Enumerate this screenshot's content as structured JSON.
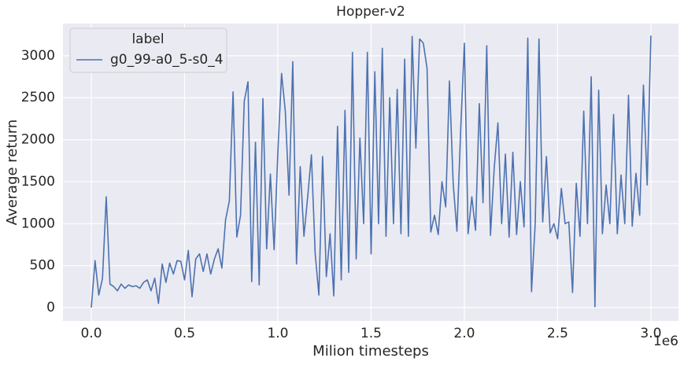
{
  "chart_data": {
    "type": "line",
    "title": "Hopper-v2",
    "x_label": "Milion timesteps",
    "y_label": "Average return",
    "x_offset_label": "1e6",
    "legend_title": "label",
    "legend_position": "upper left",
    "grid": true,
    "xlim": [
      -0.152,
      3.148
    ],
    "ylim": [
      -159,
      3383
    ],
    "xticks": [
      {
        "value": 0,
        "label": "0.0"
      },
      0.5,
      {
        "value": 1,
        "label": "1.0"
      },
      1.5,
      {
        "value": 2,
        "label": "2.0"
      },
      2.5,
      {
        "value": 3,
        "label": "3.0"
      }
    ],
    "yticks": [
      0,
      500,
      1000,
      1500,
      2000,
      2500,
      3000
    ],
    "x": [
      0,
      0.02,
      0.04,
      0.06,
      0.08,
      0.1,
      0.12,
      0.14,
      0.16,
      0.18,
      0.2,
      0.22,
      0.24,
      0.26,
      0.28,
      0.3,
      0.32,
      0.34,
      0.36,
      0.38,
      0.4,
      0.42,
      0.44,
      0.46,
      0.48,
      0.5,
      0.52,
      0.54,
      0.56,
      0.58,
      0.6,
      0.62,
      0.64,
      0.66,
      0.68,
      0.7,
      0.72,
      0.74,
      0.76,
      0.78,
      0.8,
      0.82,
      0.84,
      0.86,
      0.88,
      0.9,
      0.92,
      0.94,
      0.96,
      0.98,
      1,
      1.02,
      1.04,
      1.06,
      1.08,
      1.1,
      1.12,
      1.14,
      1.16,
      1.18,
      1.2,
      1.22,
      1.24,
      1.26,
      1.28,
      1.3,
      1.32,
      1.34,
      1.36,
      1.38,
      1.4,
      1.42,
      1.44,
      1.46,
      1.48,
      1.5,
      1.52,
      1.54,
      1.56,
      1.58,
      1.6,
      1.62,
      1.64,
      1.66,
      1.68,
      1.7,
      1.72,
      1.74,
      1.76,
      1.78,
      1.8,
      1.82,
      1.84,
      1.86,
      1.88,
      1.9,
      1.92,
      1.94,
      1.96,
      1.98,
      2,
      2.02,
      2.04,
      2.06,
      2.08,
      2.1,
      2.12,
      2.14,
      2.16,
      2.18,
      2.2,
      2.22,
      2.24,
      2.26,
      2.28,
      2.3,
      2.32,
      2.34,
      2.36,
      2.38,
      2.4,
      2.42,
      2.44,
      2.46,
      2.48,
      2.5,
      2.52,
      2.54,
      2.56,
      2.58,
      2.6,
      2.62,
      2.64,
      2.66,
      2.68,
      2.7,
      2.72,
      2.74,
      2.76,
      2.78,
      2.8,
      2.82,
      2.84,
      2.86,
      2.88,
      2.9,
      2.92,
      2.94,
      2.96,
      2.98,
      3
    ],
    "series": [
      {
        "name": "g0_99-a0_5-s0_4",
        "color": "#4c72b0",
        "values": [
          0,
          560,
          150,
          350,
          1320,
          280,
          250,
          200,
          280,
          230,
          270,
          250,
          260,
          230,
          300,
          330,
          200,
          350,
          50,
          520,
          300,
          530,
          400,
          560,
          550,
          330,
          680,
          130,
          580,
          640,
          430,
          640,
          400,
          580,
          700,
          470,
          1050,
          1270,
          2570,
          840,
          1100,
          2460,
          2690,
          310,
          1970,
          270,
          2490,
          700,
          1590,
          690,
          1850,
          2790,
          2340,
          1340,
          2930,
          520,
          1680,
          850,
          1320,
          1820,
          650,
          150,
          1800,
          370,
          880,
          140,
          2160,
          330,
          2350,
          420,
          3040,
          580,
          2020,
          1000,
          3040,
          640,
          2810,
          1000,
          3090,
          850,
          2500,
          1000,
          2600,
          880,
          2960,
          850,
          3230,
          1900,
          3200,
          3150,
          2850,
          900,
          1100,
          870,
          1500,
          1200,
          2700,
          1480,
          910,
          2100,
          3150,
          880,
          1320,
          920,
          2430,
          1250,
          3120,
          860,
          1660,
          2200,
          1000,
          1830,
          840,
          1850,
          870,
          1500,
          960,
          3210,
          190,
          1010,
          3200,
          1020,
          1800,
          890,
          1000,
          820,
          1420,
          1000,
          1020,
          180,
          1480,
          850,
          2340,
          1000,
          2750,
          10,
          2590,
          880,
          1460,
          1000,
          2300,
          880,
          1580,
          1000,
          2530,
          970,
          1600,
          1100,
          2650,
          1460,
          3240
        ]
      }
    ]
  }
}
